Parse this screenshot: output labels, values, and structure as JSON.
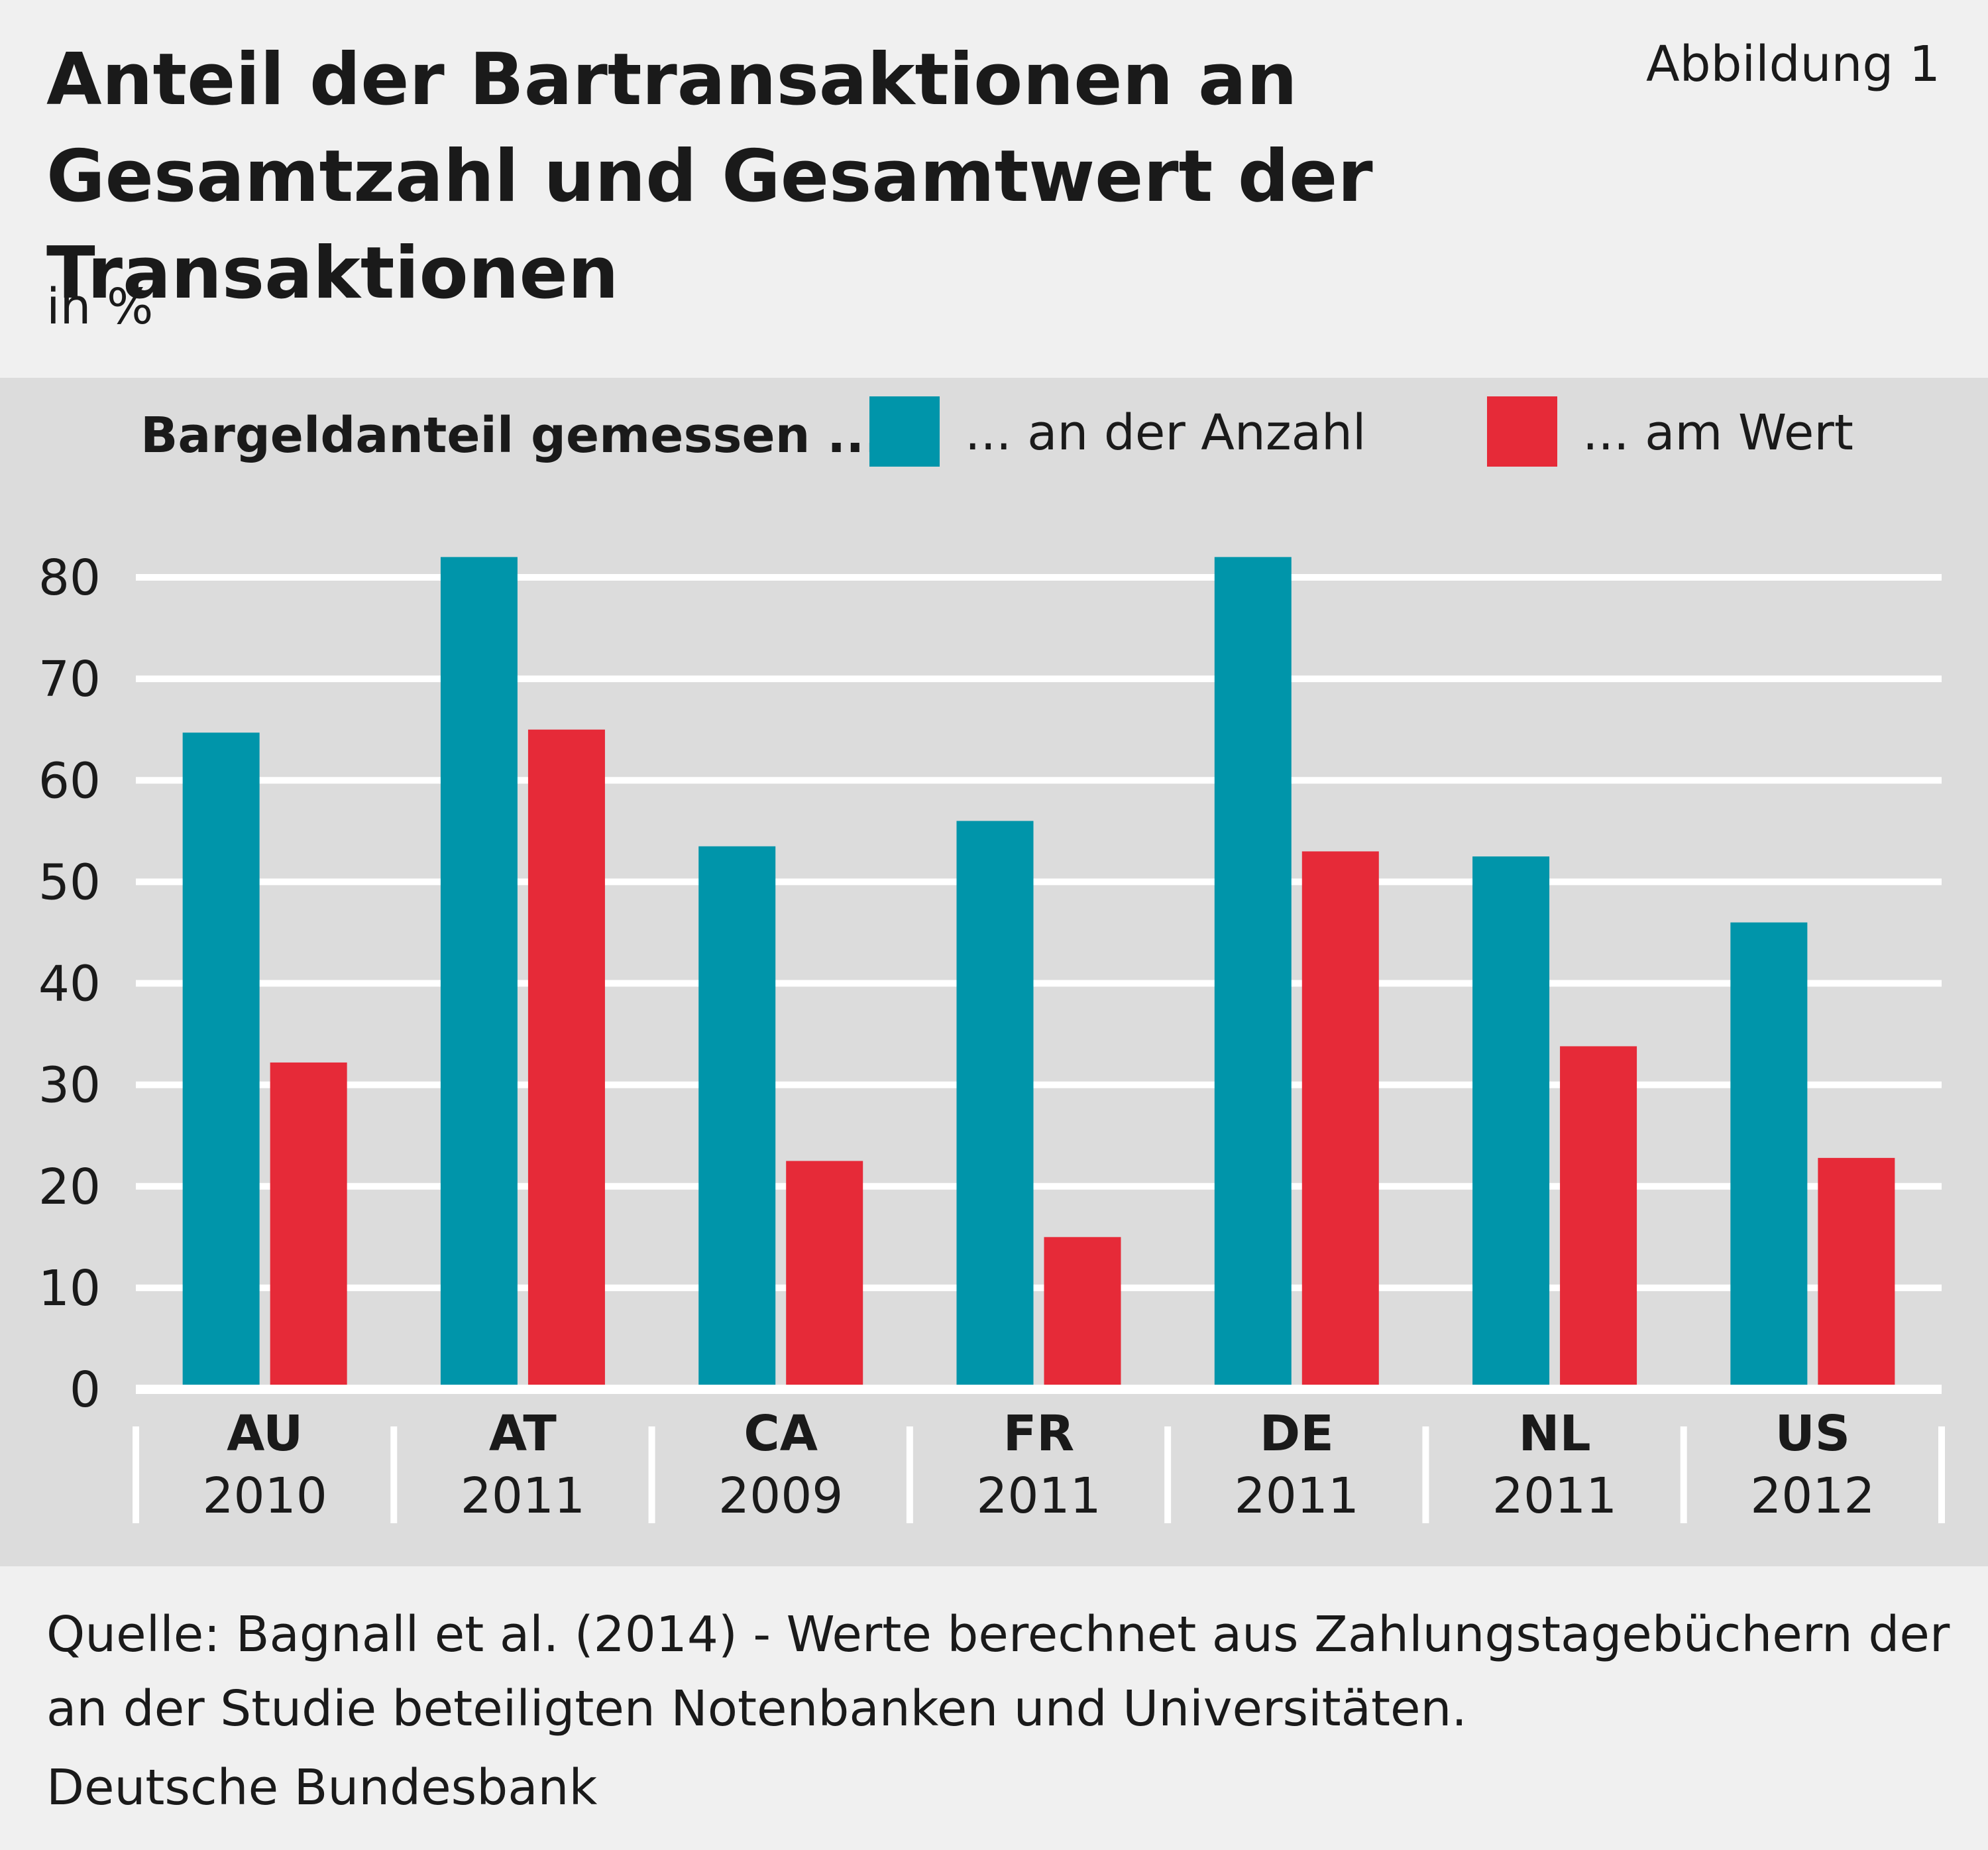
{
  "header": {
    "title": "Anteil der Bartransaktionen an Gesamtzahl und Gesamtwert der Transaktionen",
    "figure_label": "Abbildung 1",
    "unit": "in %"
  },
  "footer": {
    "source": "Quelle: Bagnall et al. (2014) - Werte berechnet aus Zahlungstagebüchern der an der Studie beteiligten Notenbanken und Universitäten.",
    "organization": "Deutsche Bundesbank"
  },
  "chart_data": {
    "type": "bar",
    "title": "Anteil der Bartransaktionen an Gesamtzahl und Gesamtwert der Transaktionen",
    "ylabel": "in %",
    "legend_title": "Bargeldanteil gemessen ...",
    "legend_position": "top",
    "categories": [
      "AU",
      "AT",
      "CA",
      "FR",
      "DE",
      "NL",
      "US"
    ],
    "category_years": [
      "2010",
      "2011",
      "2009",
      "2011",
      "2011",
      "2011",
      "2012"
    ],
    "series": [
      {
        "name": "... an der Anzahl",
        "color": "#0095aa",
        "values": [
          64.7,
          82,
          53.5,
          56,
          82,
          52.5,
          46
        ]
      },
      {
        "name": "... am Wert",
        "color": "#e62a38",
        "values": [
          32.2,
          65,
          22.5,
          15,
          53,
          33.8,
          22.8
        ]
      }
    ],
    "ylim": [
      0,
      80
    ],
    "yticks": [
      0,
      10,
      20,
      30,
      40,
      50,
      60,
      70,
      80
    ],
    "grid": true,
    "grid_color": "#ffffff",
    "panel_color": "#dcdcdc"
  }
}
